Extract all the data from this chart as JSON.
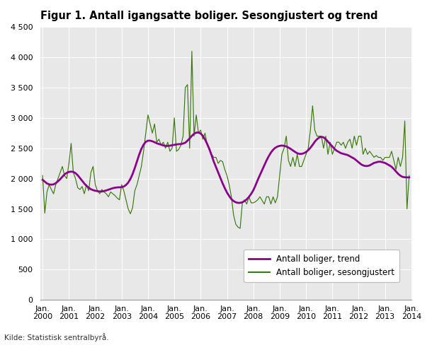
{
  "title": "Figur 1. Antall igangsatte boliger. Sesongjustert og trend",
  "ylim": [
    0,
    4500
  ],
  "yticks": [
    0,
    500,
    1000,
    1500,
    2000,
    2500,
    3000,
    3500,
    4000,
    4500
  ],
  "source": "Kilde: Statistisk sentralbyrå.",
  "trend_color": "#8b008b",
  "seasonal_color": "#3a7a10",
  "background_color": "#e8e8e8",
  "legend_labels": [
    "Antall boliger, trend",
    "Antall boliger, sesongjustert"
  ],
  "x_tick_labels": [
    "Jan.\n2000",
    "Jan.\n2001",
    "Jan.\n2002",
    "Jan.\n2003",
    "Jan.\n2004",
    "Jan.\n2005",
    "Jan.\n2006",
    "Jan.\n2007",
    "Jan.\n2008",
    "Jan.\n2009",
    "Jan.\n2010",
    "Jan.\n2011",
    "Jan.\n2012",
    "Jan.\n2013",
    "Jan.\n2014"
  ],
  "x_tick_positions": [
    0,
    12,
    24,
    36,
    48,
    60,
    72,
    84,
    96,
    108,
    120,
    132,
    144,
    156,
    168
  ],
  "seasonal": [
    2050,
    1430,
    1780,
    1900,
    1820,
    1750,
    1900,
    2000,
    2100,
    2200,
    2050,
    2000,
    2250,
    2580,
    2100,
    2000,
    1850,
    1820,
    1870,
    1750,
    1900,
    1800,
    2100,
    2200,
    1900,
    1800,
    1750,
    1820,
    1780,
    1750,
    1700,
    1780,
    1750,
    1720,
    1680,
    1650,
    1900,
    1800,
    1650,
    1500,
    1420,
    1520,
    1800,
    1900,
    2050,
    2200,
    2450,
    2750,
    3050,
    2900,
    2750,
    2900,
    2600,
    2650,
    2550,
    2600,
    2500,
    2600,
    2450,
    2500,
    3000,
    2450,
    2480,
    2550,
    2700,
    3500,
    3550,
    2500,
    4100,
    2700,
    3050,
    2750,
    2800,
    2650,
    2750,
    2550,
    2500,
    2400,
    2350,
    2350,
    2250,
    2300,
    2280,
    2150,
    2050,
    1900,
    1700,
    1400,
    1250,
    1200,
    1180,
    1600,
    1650,
    1580,
    1700,
    1600,
    1600,
    1620,
    1650,
    1700,
    1640,
    1580,
    1700,
    1700,
    1580,
    1700,
    1600,
    1700,
    2050,
    2400,
    2500,
    2700,
    2300,
    2200,
    2350,
    2200,
    2400,
    2200,
    2200,
    2300,
    2400,
    2500,
    2800,
    3200,
    2800,
    2700,
    2700,
    2700,
    2500,
    2700,
    2400,
    2600,
    2400,
    2500,
    2600,
    2600,
    2550,
    2600,
    2500,
    2600,
    2650,
    2500,
    2700,
    2550,
    2700,
    2700,
    2400,
    2500,
    2400,
    2450,
    2400,
    2350,
    2380,
    2350,
    2350,
    2300,
    2350,
    2350,
    2350,
    2450,
    2300,
    2150,
    2350,
    2200,
    2350,
    2950,
    1500,
    2050
  ],
  "trend": [
    1980,
    1950,
    1920,
    1905,
    1900,
    1905,
    1925,
    1955,
    1990,
    2030,
    2070,
    2095,
    2110,
    2115,
    2110,
    2090,
    2055,
    2010,
    1965,
    1920,
    1880,
    1850,
    1825,
    1810,
    1800,
    1793,
    1788,
    1787,
    1795,
    1805,
    1818,
    1830,
    1842,
    1850,
    1855,
    1857,
    1858,
    1870,
    1895,
    1935,
    1995,
    2075,
    2175,
    2285,
    2395,
    2490,
    2560,
    2605,
    2625,
    2625,
    2615,
    2600,
    2582,
    2570,
    2557,
    2547,
    2540,
    2538,
    2543,
    2550,
    2558,
    2563,
    2568,
    2570,
    2578,
    2592,
    2625,
    2662,
    2705,
    2738,
    2758,
    2760,
    2742,
    2705,
    2645,
    2570,
    2483,
    2383,
    2278,
    2188,
    2100,
    2012,
    1922,
    1842,
    1770,
    1712,
    1662,
    1630,
    1610,
    1600,
    1600,
    1610,
    1630,
    1658,
    1698,
    1748,
    1808,
    1888,
    1978,
    2058,
    2138,
    2218,
    2298,
    2368,
    2428,
    2475,
    2508,
    2528,
    2540,
    2545,
    2540,
    2530,
    2512,
    2490,
    2465,
    2440,
    2418,
    2408,
    2408,
    2418,
    2438,
    2468,
    2508,
    2555,
    2608,
    2648,
    2678,
    2688,
    2680,
    2648,
    2610,
    2568,
    2530,
    2490,
    2458,
    2438,
    2418,
    2408,
    2398,
    2388,
    2368,
    2348,
    2328,
    2298,
    2268,
    2238,
    2218,
    2208,
    2208,
    2218,
    2238,
    2258,
    2268,
    2278,
    2278,
    2268,
    2258,
    2238,
    2218,
    2195,
    2158,
    2118,
    2078,
    2048,
    2028,
    2022,
    2020,
    2020
  ]
}
